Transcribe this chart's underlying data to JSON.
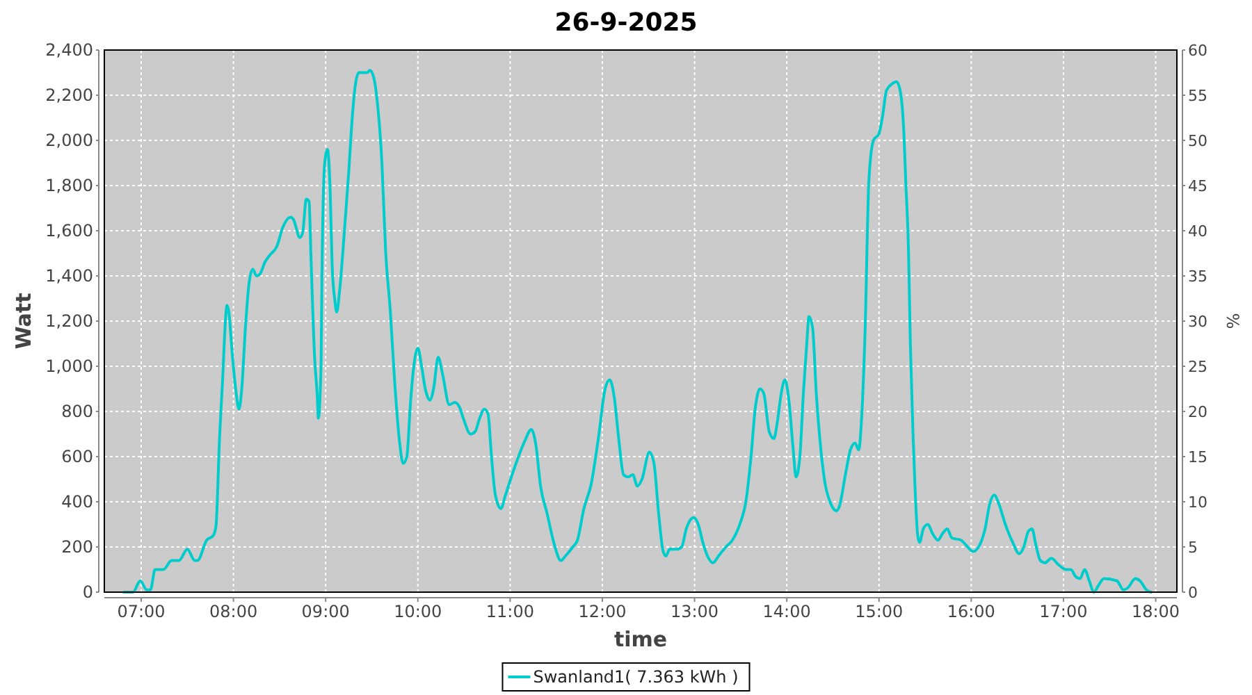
{
  "chart_data": {
    "type": "line",
    "title": "26-9-2025",
    "xlabel": "time",
    "ylabel": "Watt",
    "y2label": "%",
    "x": [
      6.81,
      6.91,
      6.99,
      7.06,
      7.1,
      7.15,
      7.24,
      7.33,
      7.41,
      7.5,
      7.58,
      7.61,
      7.71,
      7.78,
      7.81,
      7.85,
      7.88,
      7.92,
      7.93,
      7.95,
      7.99,
      8.03,
      8.06,
      8.09,
      8.13,
      8.17,
      8.21,
      8.25,
      8.29,
      8.34,
      8.39,
      8.47,
      8.54,
      8.62,
      8.65,
      8.72,
      8.75,
      8.79,
      8.82,
      8.84,
      8.88,
      8.91,
      8.92,
      8.95,
      8.96,
      8.99,
      9.02,
      9.05,
      9.07,
      9.1,
      9.12,
      9.15,
      9.2,
      9.25,
      9.29,
      9.32,
      9.36,
      9.45,
      9.48,
      9.52,
      9.56,
      9.61,
      9.65,
      9.7,
      9.75,
      9.8,
      9.84,
      9.88,
      9.92,
      9.95,
      10,
      10.04,
      10.08,
      10.13,
      10.17,
      10.22,
      10.27,
      10.34,
      10.4,
      10.45,
      10.5,
      10.57,
      10.62,
      10.67,
      10.72,
      10.76,
      10.8,
      10.84,
      10.9,
      10.95,
      11.03,
      11.1,
      11.16,
      11.23,
      11.28,
      11.33,
      11.4,
      11.48,
      11.55,
      11.6,
      11.68,
      11.73,
      11.8,
      11.88,
      11.96,
      12.03,
      12.08,
      12.13,
      12.18,
      12.23,
      12.28,
      12.33,
      12.38,
      12.43,
      12.51,
      12.56,
      12.61,
      12.66,
      12.69,
      12.73,
      12.81,
      12.86,
      12.91,
      12.99,
      13.04,
      13.09,
      13.14,
      13.2,
      13.26,
      13.34,
      13.41,
      13.49,
      13.56,
      13.61,
      13.66,
      13.71,
      13.75,
      13.81,
      13.86,
      13.9,
      13.94,
      13.98,
      14.02,
      14.07,
      14.1,
      14.14,
      14.18,
      14.22,
      14.24,
      14.28,
      14.32,
      14.37,
      14.42,
      14.46,
      14.54,
      14.57,
      14.64,
      14.69,
      14.74,
      14.78,
      14.81,
      14.85,
      14.89,
      14.94,
      15,
      15.04,
      15.08,
      15.14,
      15.19,
      15.23,
      15.27,
      15.29,
      15.32,
      15.34,
      15.37,
      15.39,
      15.42,
      15.44,
      15.48,
      15.53,
      15.58,
      15.64,
      15.69,
      15.74,
      15.79,
      15.89,
      15.94,
      16.02,
      16.08,
      16.15,
      16.2,
      16.25,
      16.3,
      16.37,
      16.45,
      16.52,
      16.57,
      16.62,
      16.66,
      16.7,
      16.75,
      16.8,
      16.87,
      16.95,
      17.03,
      17.08,
      17.13,
      17.18,
      17.23,
      17.28,
      17.33,
      17.38,
      17.44,
      17.58,
      17.65,
      17.7,
      17.78,
      17.83,
      17.9,
      17.95
    ],
    "series": [
      {
        "name": "Swanland1( 7.363 kWh )",
        "color": "#00cccc",
        "values": [
          0,
          0,
          50,
          10,
          10,
          100,
          100,
          140,
          140,
          190,
          140,
          140,
          230,
          250,
          290,
          690,
          920,
          1240,
          1270,
          1240,
          1040,
          880,
          810,
          900,
          1170,
          1370,
          1430,
          1400,
          1410,
          1460,
          1490,
          1530,
          1620,
          1660,
          1650,
          1570,
          1590,
          1740,
          1730,
          1490,
          1040,
          860,
          770,
          1000,
          1410,
          1900,
          1960,
          1760,
          1450,
          1290,
          1240,
          1330,
          1580,
          1860,
          2110,
          2240,
          2300,
          2300,
          2310,
          2280,
          2170,
          1900,
          1510,
          1250,
          920,
          670,
          570,
          600,
          840,
          980,
          1080,
          1000,
          900,
          850,
          900,
          1040,
          960,
          830,
          840,
          820,
          760,
          700,
          710,
          770,
          810,
          790,
          590,
          430,
          370,
          430,
          530,
          610,
          670,
          720,
          650,
          470,
          350,
          210,
          140,
          160,
          200,
          230,
          370,
          480,
          690,
          900,
          940,
          860,
          670,
          520,
          510,
          520,
          470,
          500,
          620,
          570,
          350,
          180,
          160,
          190,
          190,
          200,
          280,
          330,
          300,
          220,
          160,
          130,
          160,
          200,
          230,
          300,
          410,
          590,
          820,
          900,
          880,
          710,
          680,
          760,
          880,
          940,
          860,
          630,
          510,
          590,
          880,
          1120,
          1220,
          1170,
          880,
          630,
          470,
          410,
          360,
          380,
          530,
          630,
          660,
          630,
          760,
          1170,
          1820,
          2000,
          2030,
          2110,
          2220,
          2250,
          2260,
          2220,
          2030,
          1820,
          1510,
          1100,
          690,
          470,
          250,
          220,
          280,
          300,
          260,
          230,
          260,
          280,
          240,
          230,
          210,
          180,
          200,
          280,
          390,
          430,
          390,
          300,
          220,
          170,
          200,
          270,
          280,
          210,
          140,
          130,
          150,
          120,
          100,
          100,
          70,
          60,
          100,
          50,
          0,
          30,
          60,
          50,
          10,
          20,
          60,
          50,
          10,
          0
        ]
      }
    ],
    "xlim": [
      6.6,
      18.23
    ],
    "ylim": [
      0,
      2400
    ],
    "y2lim": [
      0,
      60
    ],
    "xticks": [
      {
        "value": 7,
        "label": "07:00"
      },
      {
        "value": 8,
        "label": "08:00"
      },
      {
        "value": 9,
        "label": "09:00"
      },
      {
        "value": 10,
        "label": "10:00"
      },
      {
        "value": 11,
        "label": "11:00"
      },
      {
        "value": 12,
        "label": "12:00"
      },
      {
        "value": 13,
        "label": "13:00"
      },
      {
        "value": 14,
        "label": "14:00"
      },
      {
        "value": 15,
        "label": "15:00"
      },
      {
        "value": 16,
        "label": "16:00"
      },
      {
        "value": 17,
        "label": "17:00"
      },
      {
        "value": 18,
        "label": "18:00"
      }
    ],
    "yticks": [
      0,
      200,
      400,
      600,
      800,
      {
        "value": 1000,
        "label": "1,000"
      },
      {
        "value": 1200,
        "label": "1,200"
      },
      {
        "value": 1400,
        "label": "1,400"
      },
      {
        "value": 1600,
        "label": "1,600"
      },
      {
        "value": 1800,
        "label": "1,800"
      },
      {
        "value": 2000,
        "label": "2,000"
      },
      {
        "value": 2200,
        "label": "2,200"
      },
      {
        "value": 2400,
        "label": "2,400"
      }
    ],
    "y2ticks": [
      0,
      5,
      10,
      15,
      20,
      25,
      30,
      35,
      40,
      45,
      50,
      55,
      60
    ],
    "grid": true,
    "legend": "bottom",
    "line_style": "solid"
  }
}
